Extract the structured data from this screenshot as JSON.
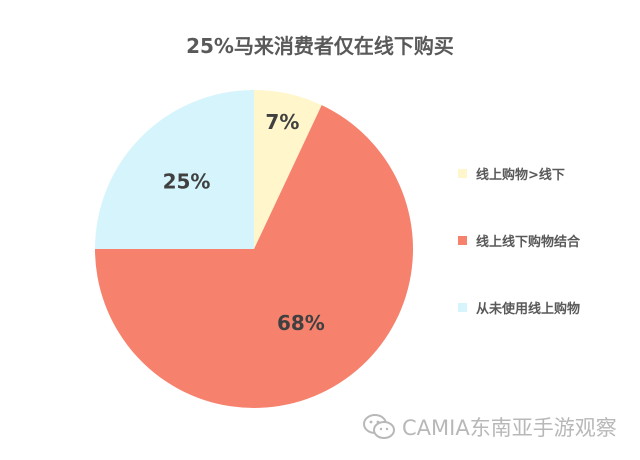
{
  "chart_data": {
    "type": "pie",
    "title": "25%马来消费者仅在线下购买",
    "slices": [
      {
        "label": "线上购物>线下",
        "value": 7,
        "data_label": "7%",
        "color": "#FFF6CC"
      },
      {
        "label": "线上线下购物结合",
        "value": 68,
        "data_label": "68%",
        "color": "#F6826E"
      },
      {
        "label": "从未使用线上购物",
        "value": 25,
        "data_label": "25%",
        "color": "#D6F4FB"
      }
    ],
    "legend_position": "right",
    "start_angle_deg": 0,
    "direction": "clockwise"
  },
  "watermark": {
    "text": "CAMIA东南亚手游观察",
    "icon": "wechat-icon"
  }
}
